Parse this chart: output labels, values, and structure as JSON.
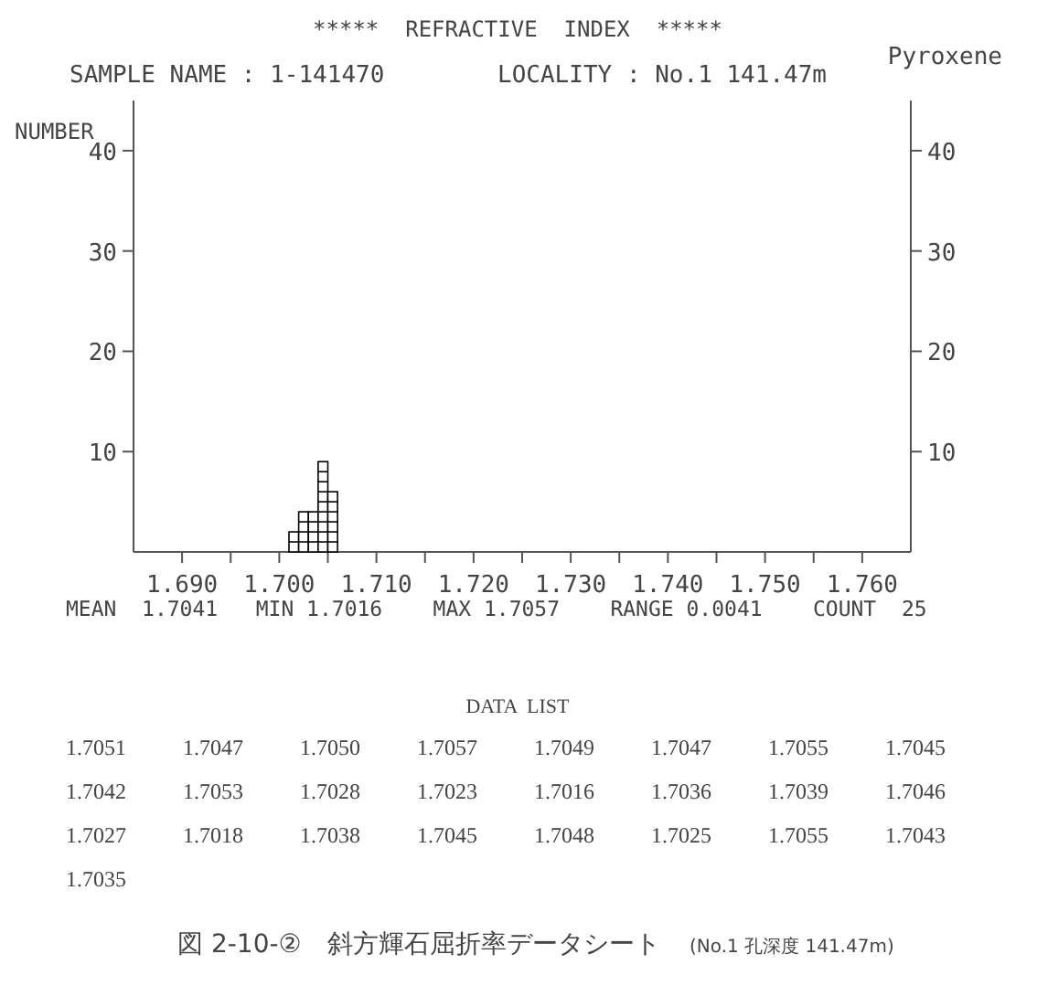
{
  "chart_data": {
    "type": "histogram",
    "title": "*****  REFRACTIVE  INDEX  *****",
    "subtitle": "SAMPLE NAME : 1-141470",
    "ylabel": "NUMBER",
    "bins": [
      1.701,
      1.702,
      1.703,
      1.704,
      1.705,
      1.706
    ],
    "values": [
      2,
      4,
      4,
      9,
      6
    ],
    "color": "#000000",
    "xlim": [
      1.685,
      1.765
    ],
    "xticks": [
      {
        "value": 1.69,
        "label": "1.690"
      },
      {
        "value": 1.695,
        "label": null
      },
      {
        "value": 1.7,
        "label": "1.700"
      },
      {
        "value": 1.705,
        "label": null
      },
      {
        "value": 1.71,
        "label": "1.710"
      },
      {
        "value": 1.715,
        "label": null
      },
      {
        "value": 1.72,
        "label": "1.720"
      },
      {
        "value": 1.725,
        "label": null
      },
      {
        "value": 1.73,
        "label": "1.730"
      },
      {
        "value": 1.735,
        "label": null
      },
      {
        "value": 1.74,
        "label": "1.740"
      },
      {
        "value": 1.745,
        "label": null
      },
      {
        "value": 1.75,
        "label": "1.750"
      },
      {
        "value": 1.755,
        "label": null
      },
      {
        "value": 1.76,
        "label": "1.760"
      }
    ],
    "ylim": [
      0,
      45
    ],
    "yticks": [
      10,
      20,
      30,
      40
    ],
    "y2lim": [
      0,
      45
    ],
    "y2ticks": [
      10,
      20,
      30,
      40
    ],
    "grid": false,
    "annotations": [
      "LOCALITY : No.1 141.47m",
      "Pyroxene",
      "MEAN  1.7041   MIN 1.7016    MAX 1.7057    RANGE 0.0041    COUNT  25",
      "DATA  LIST",
      "1.7051",
      "1.7047",
      "1.7050",
      "1.7057",
      "1.7049",
      "1.7047",
      "1.7055",
      "1.7045",
      "1.7042",
      "1.7053",
      "1.7028",
      "1.7023",
      "1.7016",
      "1.7036",
      "1.7039",
      "1.7046",
      "1.7027",
      "1.7018",
      "1.7038",
      "1.7045",
      "1.7048",
      "1.7025",
      "1.7055",
      "1.7043",
      "1.7035",
      "図 2-10-②　斜方輝石屈折率データシート",
      "(No.1 孔深度 141.47m)"
    ]
  }
}
